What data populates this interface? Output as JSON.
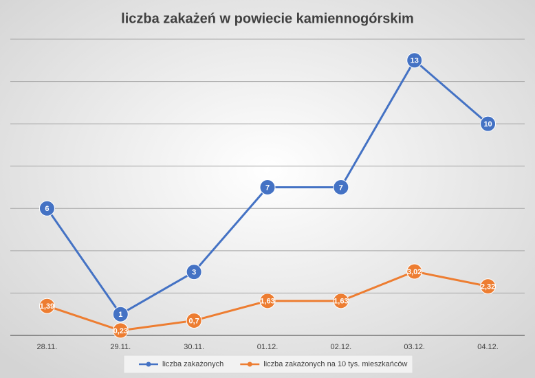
{
  "chart_data": {
    "type": "line",
    "title": "liczba zakażeń w powiecie kamiennogórskim",
    "categories": [
      "28.11.",
      "29.11.",
      "30.11.",
      "01.12.",
      "02.12.",
      "03.12.",
      "04.12."
    ],
    "series": [
      {
        "name": "liczba zakażonych",
        "color": "#4472c4",
        "values": [
          6,
          1,
          3,
          7,
          7,
          13,
          10
        ]
      },
      {
        "name": "liczba zakażonych na 10 tys. mieszkańców",
        "color": "#ed7d31",
        "values": [
          1.39,
          0.23,
          0.7,
          1.63,
          1.63,
          3.02,
          2.32
        ],
        "value_labels": [
          "1,39",
          "0,23",
          "0,7",
          "1,63",
          "1,63",
          "3,02",
          "2,32"
        ]
      }
    ],
    "ylim": [
      0,
      14
    ],
    "yticks": [
      0,
      2,
      4,
      6,
      8,
      10,
      12,
      14
    ],
    "grid": true
  }
}
